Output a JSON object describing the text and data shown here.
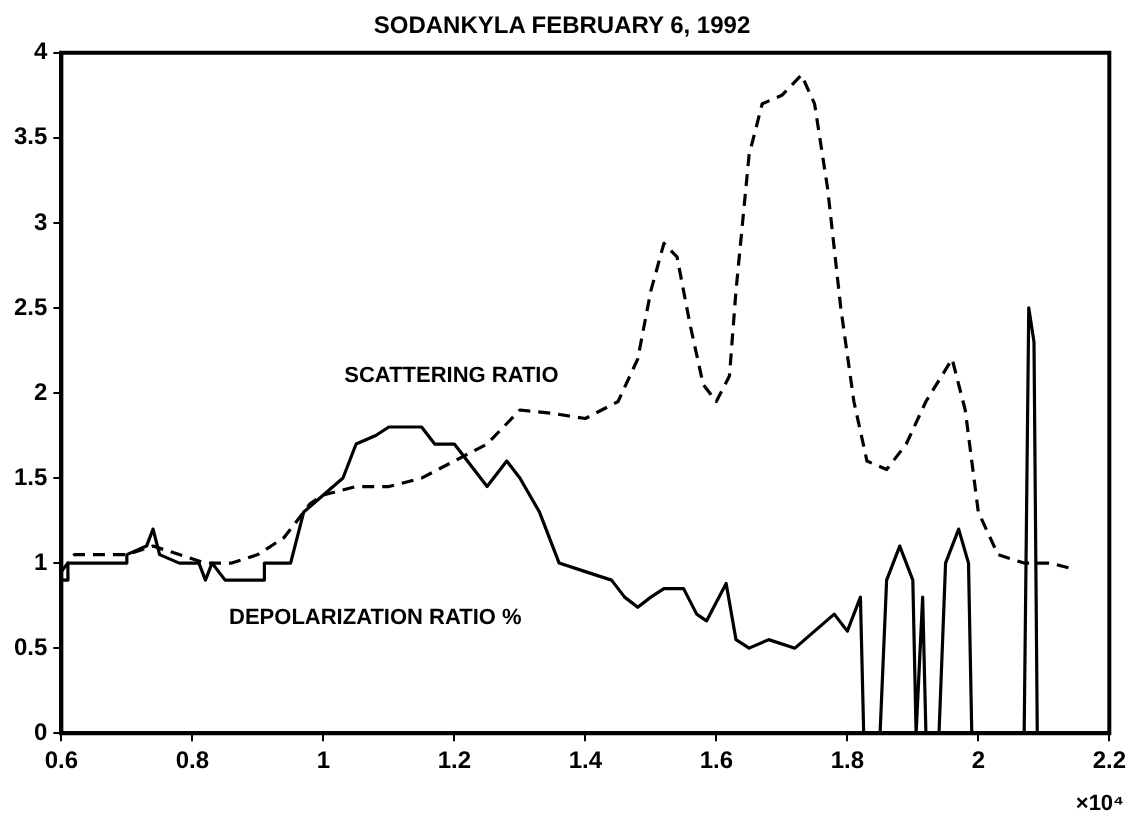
{
  "chart_data": {
    "type": "line",
    "title": "SODANKYLA FEBRUARY 6, 1992",
    "xlim": [
      0.6,
      2.2
    ],
    "xticks": [
      0.6,
      0.8,
      1,
      1.2,
      1.4,
      1.6,
      1.8,
      2,
      2.2
    ],
    "ylim": [
      0,
      4
    ],
    "yticks": [
      0,
      0.5,
      1,
      1.5,
      2,
      2.5,
      3,
      3.5,
      4
    ],
    "grid": false,
    "legend": false,
    "marker": "none",
    "annotations": [
      "×10⁴"
    ],
    "series": [
      {
        "name": "SCATTERING RATIO",
        "color": "#000000",
        "line_style": "dashed",
        "x": [
          0.6,
          0.62,
          0.65,
          0.7,
          0.74,
          0.78,
          0.82,
          0.86,
          0.9,
          0.94,
          0.98,
          1.0,
          1.05,
          1.1,
          1.15,
          1.2,
          1.25,
          1.3,
          1.35,
          1.4,
          1.45,
          1.48,
          1.5,
          1.52,
          1.54,
          1.56,
          1.58,
          1.6,
          1.62,
          1.63,
          1.65,
          1.67,
          1.7,
          1.73,
          1.75,
          1.77,
          1.79,
          1.81,
          1.83,
          1.86,
          1.89,
          1.92,
          1.96,
          1.98,
          2.0,
          2.03,
          2.07,
          2.11,
          2.14
        ],
        "values": [
          0.95,
          1.05,
          1.05,
          1.05,
          1.1,
          1.05,
          1.0,
          1.0,
          1.05,
          1.15,
          1.35,
          1.4,
          1.45,
          1.45,
          1.5,
          1.6,
          1.7,
          1.9,
          1.88,
          1.85,
          1.95,
          2.2,
          2.6,
          2.88,
          2.8,
          2.4,
          2.05,
          1.95,
          2.1,
          2.6,
          3.4,
          3.7,
          3.75,
          3.87,
          3.7,
          3.2,
          2.5,
          1.95,
          1.6,
          1.55,
          1.7,
          1.95,
          2.2,
          1.9,
          1.3,
          1.05,
          1.0,
          1.0,
          0.97
        ]
      },
      {
        "name": "DEPOLARIZATION RATIO %",
        "color": "#000000",
        "line_style": "solid",
        "x": [
          0.6,
          0.61,
          0.61,
          0.7,
          0.7,
          0.73,
          0.74,
          0.75,
          0.78,
          0.81,
          0.82,
          0.83,
          0.85,
          0.86,
          0.91,
          0.91,
          0.95,
          0.97,
          1.0,
          1.03,
          1.05,
          1.08,
          1.1,
          1.15,
          1.17,
          1.2,
          1.22,
          1.25,
          1.28,
          1.3,
          1.33,
          1.36,
          1.4,
          1.44,
          1.46,
          1.48,
          1.5,
          1.52,
          1.55,
          1.57,
          1.585,
          1.615,
          1.63,
          1.65,
          1.68,
          1.72,
          1.75,
          1.78,
          1.8,
          1.82,
          1.825,
          1.85,
          1.86,
          1.88,
          1.9,
          1.905,
          1.915,
          1.92,
          1.94,
          1.95,
          1.97,
          1.985,
          1.99,
          2.07,
          2.077,
          2.085,
          2.09
        ],
        "values": [
          0.9,
          0.9,
          1.0,
          1.0,
          1.05,
          1.1,
          1.2,
          1.05,
          1.0,
          1.0,
          0.9,
          1.0,
          0.9,
          0.9,
          0.9,
          1.0,
          1.0,
          1.3,
          1.4,
          1.5,
          1.7,
          1.75,
          1.8,
          1.8,
          1.7,
          1.7,
          1.6,
          1.45,
          1.6,
          1.5,
          1.3,
          1.0,
          0.95,
          0.9,
          0.8,
          0.74,
          0.8,
          0.85,
          0.85,
          0.7,
          0.66,
          0.88,
          0.55,
          0.5,
          0.55,
          0.5,
          0.6,
          0.7,
          0.6,
          0.8,
          0,
          0,
          0.9,
          1.1,
          0.9,
          0,
          0.8,
          0,
          0,
          1.0,
          1.2,
          1.0,
          0,
          0,
          2.5,
          2.3,
          0
        ]
      }
    ]
  }
}
